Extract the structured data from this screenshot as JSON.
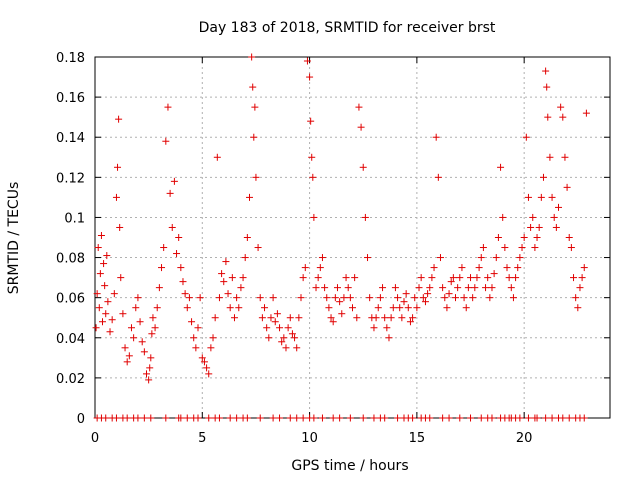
{
  "chart_data": {
    "type": "scatter",
    "title": "Day 183 of 2018, SRMTID for receiver brst",
    "xlabel": "GPS time / hours",
    "ylabel": "SRMTID / TECUs",
    "xlim": [
      0,
      24
    ],
    "ylim": [
      0,
      0.18
    ],
    "xticks": [
      0,
      5,
      10,
      15,
      20
    ],
    "xtick_labels": [
      "0",
      "5",
      "10",
      "15",
      "20"
    ],
    "yticks": [
      0,
      0.02,
      0.04,
      0.06,
      0.08,
      0.1,
      0.12,
      0.14,
      0.16,
      0.18
    ],
    "ytick_labels": [
      "0",
      "0.02",
      "0.04",
      "0.06",
      "0.08",
      "0.1",
      "0.12",
      "0.14",
      "0.16",
      "0.18"
    ],
    "grid": true,
    "marker": "plus",
    "marker_color": "#e00000",
    "series": [
      {
        "name": "SRMTID",
        "x": [
          0.05,
          0.1,
          0.15,
          0.2,
          0.25,
          0.3,
          0.35,
          0.4,
          0.45,
          0.5,
          0.55,
          0.6,
          0.7,
          0.8,
          0.9,
          1.0,
          1.05,
          1.1,
          1.15,
          1.2,
          1.3,
          1.4,
          1.5,
          1.6,
          1.7,
          1.8,
          1.9,
          2.0,
          2.1,
          2.2,
          2.3,
          2.4,
          2.5,
          2.55,
          2.6,
          2.65,
          2.7,
          2.8,
          2.9,
          3.0,
          3.1,
          3.2,
          3.3,
          3.4,
          3.5,
          3.6,
          3.7,
          3.8,
          3.9,
          4.0,
          4.1,
          4.2,
          4.3,
          4.4,
          4.5,
          4.6,
          4.7,
          4.8,
          4.9,
          5.0,
          5.1,
          5.2,
          5.3,
          5.4,
          5.5,
          5.6,
          5.7,
          5.8,
          5.9,
          6.0,
          6.1,
          6.2,
          6.3,
          6.4,
          6.5,
          6.6,
          6.7,
          6.8,
          6.9,
          7.0,
          7.1,
          7.2,
          7.3,
          7.35,
          7.4,
          7.45,
          7.5,
          7.6,
          7.7,
          7.8,
          7.9,
          8.0,
          8.1,
          8.2,
          8.3,
          8.4,
          8.5,
          8.6,
          8.7,
          8.8,
          8.9,
          9.0,
          9.1,
          9.2,
          9.3,
          9.4,
          9.5,
          9.6,
          9.7,
          9.8,
          9.9,
          10.0,
          10.05,
          10.1,
          10.15,
          10.2,
          10.3,
          10.4,
          10.5,
          10.6,
          10.7,
          10.8,
          10.9,
          11.0,
          11.1,
          11.2,
          11.3,
          11.4,
          11.5,
          11.6,
          11.7,
          11.8,
          11.9,
          12.0,
          12.1,
          12.2,
          12.3,
          12.4,
          12.5,
          12.6,
          12.7,
          12.8,
          12.9,
          13.0,
          13.1,
          13.2,
          13.3,
          13.4,
          13.5,
          13.6,
          13.7,
          13.8,
          13.9,
          14.0,
          14.1,
          14.2,
          14.3,
          14.4,
          14.5,
          14.6,
          14.7,
          14.8,
          14.9,
          15.0,
          15.1,
          15.2,
          15.3,
          15.4,
          15.5,
          15.6,
          15.7,
          15.8,
          15.9,
          16.0,
          16.1,
          16.2,
          16.3,
          16.4,
          16.5,
          16.6,
          16.7,
          16.8,
          16.9,
          17.0,
          17.1,
          17.2,
          17.3,
          17.4,
          17.5,
          17.6,
          17.7,
          17.8,
          17.9,
          18.0,
          18.1,
          18.2,
          18.3,
          18.4,
          18.5,
          18.6,
          18.7,
          18.8,
          18.9,
          19.0,
          19.1,
          19.2,
          19.3,
          19.4,
          19.5,
          19.6,
          19.7,
          19.8,
          19.9,
          20.0,
          20.1,
          20.2,
          20.3,
          20.4,
          20.5,
          20.6,
          20.7,
          20.8,
          20.9,
          21.0,
          21.05,
          21.1,
          21.2,
          21.3,
          21.4,
          21.5,
          21.6,
          21.7,
          21.8,
          21.9,
          22.0,
          22.1,
          22.2,
          22.3,
          22.4,
          22.5,
          22.6,
          22.7,
          22.8,
          22.9
        ],
        "y": [
          0.045,
          0.062,
          0.085,
          0.055,
          0.072,
          0.091,
          0.048,
          0.077,
          0.066,
          0.052,
          0.081,
          0.058,
          0.043,
          0.049,
          0.062,
          0.11,
          0.125,
          0.149,
          0.095,
          0.07,
          0.052,
          0.035,
          0.028,
          0.031,
          0.045,
          0.04,
          0.055,
          0.06,
          0.048,
          0.038,
          0.033,
          0.022,
          0.019,
          0.025,
          0.03,
          0.042,
          0.05,
          0.045,
          0.055,
          0.065,
          0.075,
          0.085,
          0.138,
          0.155,
          0.112,
          0.095,
          0.118,
          0.082,
          0.09,
          0.075,
          0.068,
          0.062,
          0.055,
          0.06,
          0.048,
          0.04,
          0.035,
          0.045,
          0.06,
          0.03,
          0.028,
          0.025,
          0.022,
          0.035,
          0.04,
          0.05,
          0.13,
          0.06,
          0.072,
          0.068,
          0.078,
          0.062,
          0.055,
          0.07,
          0.05,
          0.06,
          0.055,
          0.065,
          0.07,
          0.08,
          0.09,
          0.11,
          0.18,
          0.165,
          0.14,
          0.155,
          0.12,
          0.085,
          0.06,
          0.05,
          0.055,
          0.045,
          0.04,
          0.05,
          0.06,
          0.048,
          0.052,
          0.045,
          0.038,
          0.04,
          0.035,
          0.045,
          0.05,
          0.042,
          0.04,
          0.035,
          0.05,
          0.06,
          0.07,
          0.075,
          0.178,
          0.17,
          0.148,
          0.13,
          0.12,
          0.1,
          0.065,
          0.07,
          0.075,
          0.08,
          0.065,
          0.06,
          0.055,
          0.05,
          0.048,
          0.06,
          0.065,
          0.058,
          0.052,
          0.06,
          0.07,
          0.065,
          0.06,
          0.055,
          0.07,
          0.05,
          0.155,
          0.145,
          0.125,
          0.1,
          0.08,
          0.06,
          0.05,
          0.045,
          0.05,
          0.055,
          0.06,
          0.065,
          0.05,
          0.045,
          0.04,
          0.05,
          0.055,
          0.065,
          0.06,
          0.055,
          0.05,
          0.058,
          0.062,
          0.055,
          0.048,
          0.05,
          0.06,
          0.055,
          0.065,
          0.07,
          0.06,
          0.058,
          0.062,
          0.065,
          0.07,
          0.075,
          0.14,
          0.12,
          0.08,
          0.065,
          0.06,
          0.055,
          0.062,
          0.068,
          0.07,
          0.06,
          0.065,
          0.07,
          0.075,
          0.06,
          0.055,
          0.065,
          0.07,
          0.06,
          0.065,
          0.07,
          0.075,
          0.08,
          0.085,
          0.065,
          0.07,
          0.06,
          0.065,
          0.072,
          0.08,
          0.09,
          0.125,
          0.1,
          0.085,
          0.075,
          0.07,
          0.065,
          0.06,
          0.07,
          0.075,
          0.08,
          0.085,
          0.09,
          0.14,
          0.11,
          0.095,
          0.1,
          0.085,
          0.09,
          0.095,
          0.11,
          0.12,
          0.173,
          0.165,
          0.15,
          0.13,
          0.11,
          0.1,
          0.095,
          0.105,
          0.155,
          0.15,
          0.13,
          0.115,
          0.09,
          0.085,
          0.07,
          0.06,
          0.055,
          0.065,
          0.07,
          0.075,
          0.152
        ]
      }
    ],
    "zero_markers_x": [
      0.1,
      0.3,
      0.5,
      0.8,
      1.0,
      1.3,
      1.5,
      1.8,
      2.0,
      2.3,
      2.6,
      3.3,
      3.9,
      4.0,
      4.3,
      4.6,
      4.8,
      5.3,
      5.6,
      5.8,
      6.3,
      6.6,
      6.9,
      7.1,
      7.7,
      8.3,
      8.6,
      9.1,
      9.4,
      9.7,
      10.0,
      10.2,
      10.6,
      11.1,
      11.4,
      11.9,
      12.5,
      13.0,
      13.3,
      13.5,
      14.1,
      14.4,
      14.6,
      14.8,
      15.2,
      15.4,
      15.6,
      16.2,
      16.5,
      17.0,
      17.5,
      18.0,
      18.3,
      18.5,
      18.9,
      19.1,
      19.3,
      19.4,
      19.6,
      19.8,
      20.2,
      20.5,
      20.6,
      21.0,
      21.3,
      21.6,
      21.8,
      22.1,
      22.4,
      22.6,
      22.8
    ]
  }
}
